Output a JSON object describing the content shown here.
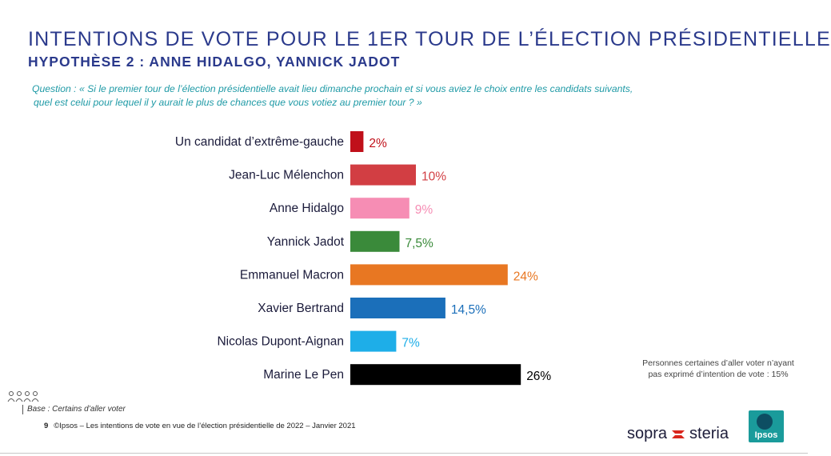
{
  "header": {
    "title": "INTENTIONS DE VOTE POUR LE 1ER TOUR DE L’ÉLECTION PRÉSIDENTIELLE",
    "subtitle": "HYPOTHÈSE 2 : ANNE HIDALGO, YANNICK JADOT",
    "question_line1": "Question : « Si le premier tour de l’élection présidentielle avait lieu dimanche prochain et si vous aviez le choix entre les candidats suivants,",
    "question_line2": "quel est celui pour lequel il y aurait le plus de chances que vous votiez au premier tour ? »"
  },
  "chart_data": {
    "type": "bar",
    "orientation": "horizontal",
    "categories": [
      "Un candidat d’extrême-gauche",
      "Jean-Luc Mélenchon",
      "Anne Hidalgo",
      "Yannick Jadot",
      "Emmanuel Macron",
      "Xavier Bertrand",
      "Nicolas Dupont-Aignan",
      "Marine Le Pen"
    ],
    "values": [
      2,
      10,
      9,
      7.5,
      24,
      14.5,
      7,
      26
    ],
    "value_labels": [
      "2%",
      "10%",
      "9%",
      "7,5%",
      "24%",
      "14,5%",
      "7%",
      "26%"
    ],
    "colors": [
      "#c0101a",
      "#d23e43",
      "#f68db4",
      "#3a8a3a",
      "#e87722",
      "#1b6fba",
      "#1eaee8",
      "#000000"
    ],
    "label_colors": [
      "#c0101a",
      "#d23e43",
      "#f68db4",
      "#3a8a3a",
      "#e87722",
      "#1b6fba",
      "#1eaee8",
      "#000000"
    ],
    "title": "",
    "xlabel": "",
    "ylabel": "",
    "xlim": [
      0,
      26
    ],
    "grid": false,
    "legend": "none"
  },
  "note": {
    "line1": "Personnes certaines d’aller voter n’ayant",
    "line2": "pas exprimé d’intention de vote : 15%"
  },
  "footer": {
    "base_text": "Base : Certains d’aller voter",
    "page_number": "9",
    "copyright": "©Ipsos – Les intentions de vote en vue de l’élection présidentielle de 2022 – Janvier 2021"
  },
  "logos": {
    "sopra_left": "sopra",
    "sopra_right": "steria",
    "ipsos": "Ipsos"
  }
}
